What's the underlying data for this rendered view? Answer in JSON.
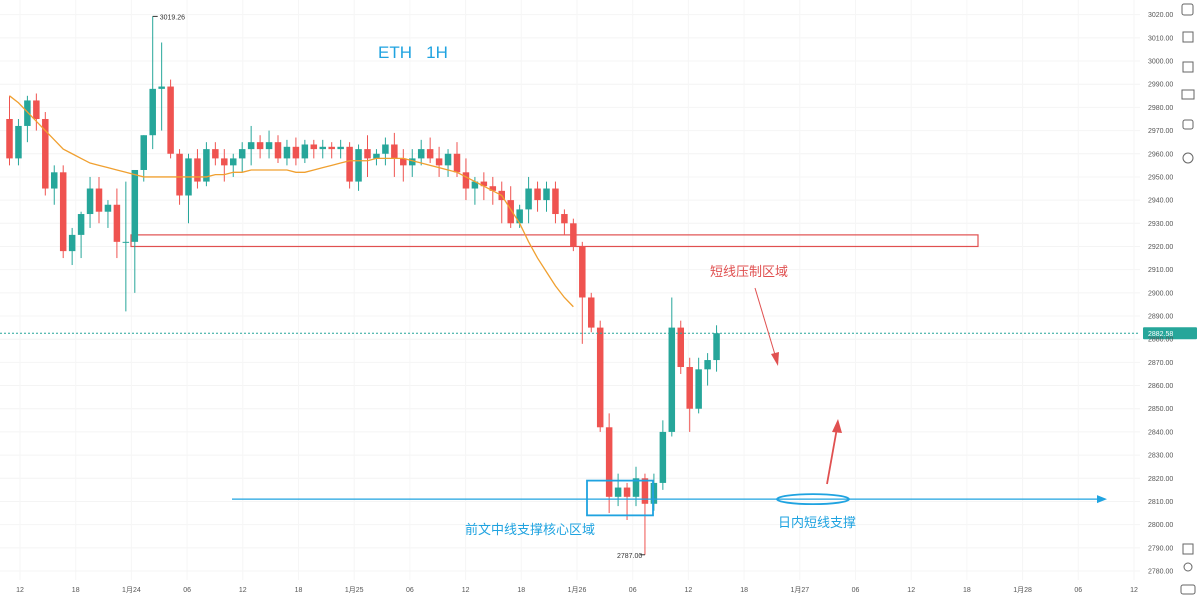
{
  "chart_data": {
    "type": "candlestick",
    "title": "ETH   1H",
    "ylim": [
      2775,
      3025
    ],
    "y_ticks": [
      "3020.00",
      "3010.00",
      "3000.00",
      "2990.00",
      "2980.00",
      "2970.00",
      "2960.00",
      "2950.00",
      "2940.00",
      "2930.00",
      "2920.00",
      "2910.00",
      "2900.00",
      "2890.00",
      "2880.00",
      "2870.00",
      "2860.00",
      "2850.00",
      "2840.00",
      "2830.00",
      "2820.00",
      "2810.00",
      "2800.00",
      "2790.00",
      "2780.00"
    ],
    "x_ticks": [
      "12",
      "18",
      "1月24",
      "06",
      "12",
      "18",
      "1月25",
      "06",
      "12",
      "18",
      "1月26",
      "06",
      "12",
      "18",
      "1月27",
      "06",
      "12",
      "18",
      "1月28",
      "06",
      "12"
    ],
    "last_price": "2882.58",
    "high_marker": "3019.26",
    "low_marker": "2787.00",
    "colors": {
      "up": "#26a69a",
      "down": "#ef5350",
      "ma": "#f0a030",
      "support": "#1fa3e0",
      "resistance": "#e05050",
      "title": "#1fa3e0"
    },
    "ohlc": [
      [
        2975,
        2985,
        2955,
        2958
      ],
      [
        2958,
        2975,
        2955,
        2972
      ],
      [
        2972,
        2985,
        2965,
        2983
      ],
      [
        2983,
        2986,
        2970,
        2975
      ],
      [
        2975,
        2978,
        2942,
        2945
      ],
      [
        2945,
        2955,
        2938,
        2952
      ],
      [
        2952,
        2955,
        2915,
        2918
      ],
      [
        2918,
        2928,
        2912,
        2925
      ],
      [
        2925,
        2935,
        2915,
        2934
      ],
      [
        2934,
        2950,
        2928,
        2945
      ],
      [
        2945,
        2950,
        2930,
        2935
      ],
      [
        2935,
        2940,
        2928,
        2938
      ],
      [
        2938,
        2945,
        2915,
        2922
      ],
      [
        2922,
        2948,
        2892,
        2922
      ],
      [
        2922,
        2952,
        2900,
        2953
      ],
      [
        2953,
        2968,
        2948,
        2968
      ],
      [
        2968,
        3019.26,
        2962,
        2988
      ],
      [
        2988,
        3008,
        2970,
        2989
      ],
      [
        2989,
        2992,
        2958,
        2960
      ],
      [
        2960,
        2962,
        2938,
        2942
      ],
      [
        2942,
        2960,
        2930,
        2958
      ],
      [
        2958,
        2962,
        2945,
        2948
      ],
      [
        2948,
        2965,
        2946,
        2962
      ],
      [
        2962,
        2965,
        2955,
        2958
      ],
      [
        2958,
        2962,
        2948,
        2955
      ],
      [
        2955,
        2960,
        2950,
        2958
      ],
      [
        2958,
        2965,
        2952,
        2962
      ],
      [
        2962,
        2972,
        2955,
        2965
      ],
      [
        2965,
        2968,
        2958,
        2962
      ],
      [
        2962,
        2970,
        2958,
        2965
      ],
      [
        2965,
        2968,
        2956,
        2958
      ],
      [
        2958,
        2966,
        2955,
        2963
      ],
      [
        2963,
        2967,
        2955,
        2958
      ],
      [
        2958,
        2966,
        2956,
        2964
      ],
      [
        2964,
        2966,
        2958,
        2962
      ],
      [
        2962,
        2966,
        2958,
        2963
      ],
      [
        2963,
        2965,
        2958,
        2962
      ],
      [
        2962,
        2966,
        2958,
        2963
      ],
      [
        2963,
        2965,
        2945,
        2948
      ],
      [
        2948,
        2964,
        2944,
        2962
      ],
      [
        2962,
        2968,
        2950,
        2958
      ],
      [
        2958,
        2962,
        2955,
        2960
      ],
      [
        2960,
        2967,
        2955,
        2964
      ],
      [
        2964,
        2969,
        2950,
        2958
      ],
      [
        2958,
        2962,
        2948,
        2955
      ],
      [
        2955,
        2962,
        2950,
        2958
      ],
      [
        2958,
        2966,
        2955,
        2962
      ],
      [
        2962,
        2967,
        2956,
        2958
      ],
      [
        2958,
        2963,
        2950,
        2955
      ],
      [
        2955,
        2962,
        2950,
        2960
      ],
      [
        2960,
        2965,
        2950,
        2952
      ],
      [
        2952,
        2958,
        2940,
        2945
      ],
      [
        2945,
        2950,
        2938,
        2948
      ],
      [
        2948,
        2952,
        2940,
        2946
      ],
      [
        2946,
        2950,
        2938,
        2944
      ],
      [
        2944,
        2948,
        2930,
        2940
      ],
      [
        2940,
        2946,
        2928,
        2930
      ],
      [
        2930,
        2938,
        2928,
        2936
      ],
      [
        2936,
        2950,
        2930,
        2945
      ],
      [
        2945,
        2948,
        2935,
        2940
      ],
      [
        2940,
        2948,
        2935,
        2945
      ],
      [
        2945,
        2948,
        2930,
        2934
      ],
      [
        2934,
        2936,
        2925,
        2930
      ],
      [
        2930,
        2932,
        2918,
        2920
      ],
      [
        2920,
        2922,
        2878,
        2898
      ],
      [
        2898,
        2900,
        2883,
        2885
      ],
      [
        2885,
        2888,
        2840,
        2842
      ],
      [
        2842,
        2848,
        2805,
        2812
      ],
      [
        2812,
        2822,
        2808,
        2816
      ],
      [
        2816,
        2818,
        2802,
        2812
      ],
      [
        2812,
        2825,
        2808,
        2820
      ],
      [
        2820,
        2822,
        2787,
        2809
      ],
      [
        2809,
        2822,
        2806,
        2818
      ],
      [
        2818,
        2845,
        2815,
        2840
      ],
      [
        2840,
        2898,
        2838,
        2885
      ],
      [
        2885,
        2888,
        2865,
        2868
      ],
      [
        2868,
        2872,
        2840,
        2850
      ],
      [
        2850,
        2872,
        2848,
        2867
      ],
      [
        2867,
        2874,
        2860,
        2871
      ],
      [
        2871,
        2886,
        2866,
        2882.58
      ]
    ],
    "ma": [
      2985,
      2982,
      2978,
      2974,
      2970,
      2966,
      2962,
      2960,
      2958,
      2956,
      2955,
      2954,
      2953,
      2952,
      2951,
      2950,
      2950,
      2950,
      2950,
      2950,
      2950,
      2950,
      2950,
      2951,
      2951,
      2952,
      2952,
      2953,
      2953,
      2953,
      2953,
      2953,
      2952,
      2952,
      2953,
      2954,
      2955,
      2956,
      2957,
      2957,
      2957,
      2958,
      2958,
      2958,
      2958,
      2957,
      2956,
      2955,
      2954,
      2953,
      2952,
      2950,
      2948,
      2946,
      2944,
      2942,
      2936,
      2930,
      2922,
      2915,
      2909,
      2903,
      2898,
      2894
    ],
    "resistance_zone": [
      2920,
      2925
    ],
    "support_level": 2811,
    "annotations": {
      "resistance_label": "短线压制区域",
      "support_box_label": "前文中线支撑核心区域",
      "intraday_label": "日内短线支撑"
    }
  }
}
